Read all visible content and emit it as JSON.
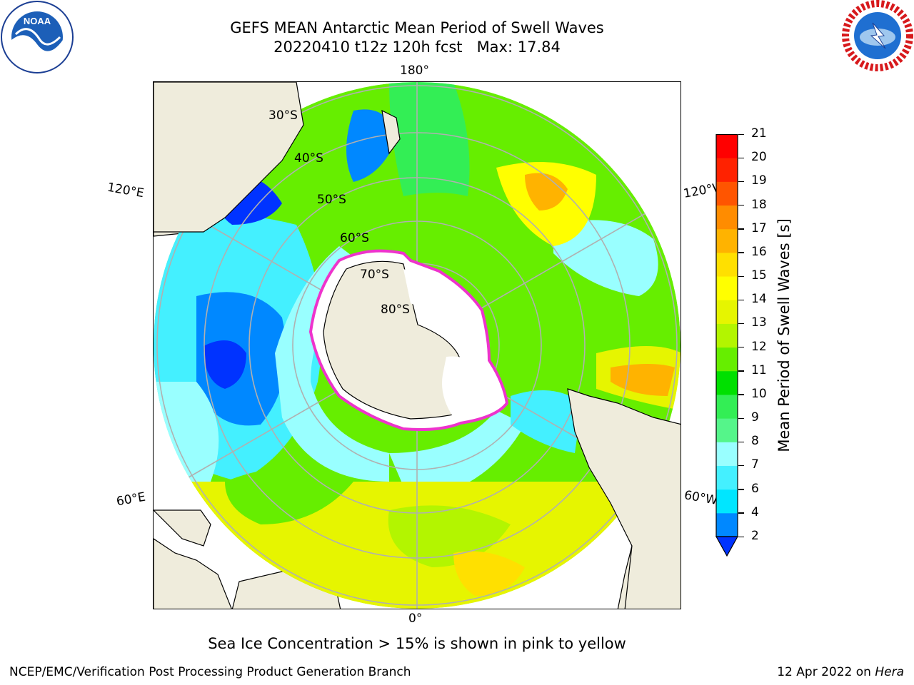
{
  "header": {
    "title_line1": "GEFS MEAN Antarctic Mean Period of Swell Waves",
    "title_line2": "20220410 t12z 120h fcst   Max: 17.84"
  },
  "map": {
    "projection": "south polar stereographic",
    "longitude_labels": {
      "top": "180°",
      "upper_left": "120°E",
      "upper_right": "120°W",
      "lower_left": "60°E",
      "lower_right": "60°W",
      "bottom": "0°"
    },
    "latitude_labels": [
      "30°S",
      "40°S",
      "50°S",
      "60°S",
      "70°S",
      "80°S"
    ],
    "land_color": "#efecdc",
    "graticule_color": "#b0b0b0"
  },
  "colorbar": {
    "label": "Mean Period of Swell Waves [s]",
    "ticks": [
      "2",
      "4",
      "6",
      "7",
      "8",
      "9",
      "10",
      "11",
      "12",
      "13",
      "14",
      "15",
      "16",
      "17",
      "18",
      "19",
      "20",
      "21"
    ],
    "colors": [
      "#0033ff",
      "#0088ff",
      "#00e6ff",
      "#44f0ff",
      "#99ffff",
      "#55f58a",
      "#33ee55",
      "#00e000",
      "#66ee00",
      "#b3f500",
      "#e6f500",
      "#ffff00",
      "#ffe000",
      "#ffb300",
      "#ff8c00",
      "#ff5500",
      "#ff2200",
      "#ff0000"
    ],
    "extend": "min"
  },
  "footer": {
    "ice_note": "Sea Ice Concentration > 15% is shown in pink to yellow",
    "left": "NCEP/EMC/Verification Post Processing Product Generation Branch",
    "right_date": "12 Apr 2022 on ",
    "right_host": "Hera"
  },
  "logos": {
    "left": "noaa-logo",
    "right": "nws-logo"
  }
}
